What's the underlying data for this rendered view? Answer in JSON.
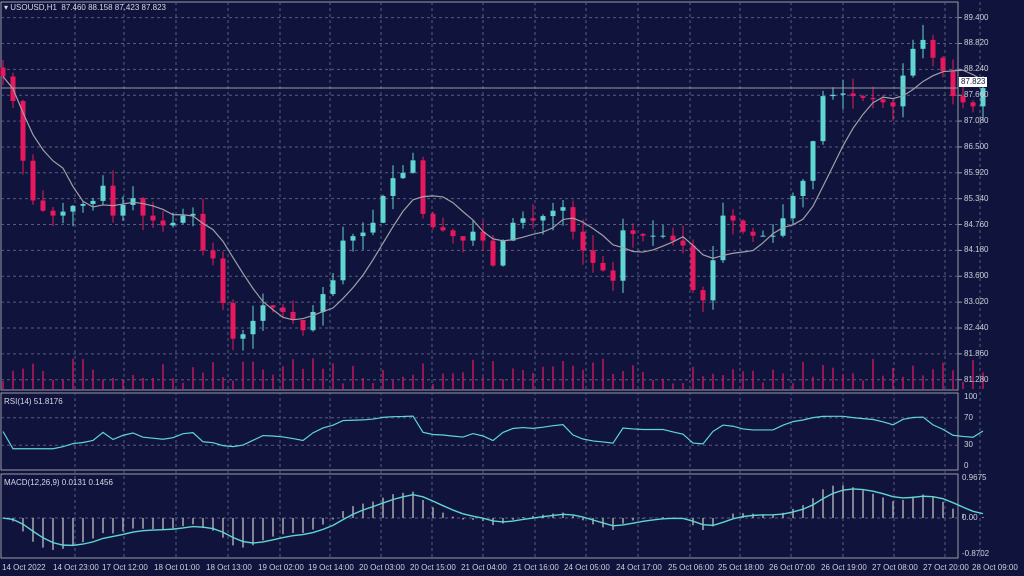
{
  "symbol_legend": {
    "symbol": "USOUSD,H1",
    "open": "87.460",
    "high": "88.158",
    "low": "87.423",
    "close": "87.823"
  },
  "current_price_tag": "87.823",
  "rsi_legend": "RSI(14) 51.8176",
  "macd_legend": "MACD(12,26,9) 0.0131 0.1456",
  "colors": {
    "background": "#10133b",
    "grid": "#565c80",
    "bull": "#5fd6d2",
    "bear": "#e8185f",
    "ma": "#a0a0a8",
    "volume": "#c0185a",
    "rsi": "#5fd6d2",
    "macd_hist": "#a8a8b0",
    "macd_signal": "#5fd6d2"
  },
  "chart_data": [
    {
      "type": "candlestick",
      "title": "USOUSD,H1",
      "price_ticks": [
        "89.400",
        "88.820",
        "88.240",
        "87.660",
        "87.080",
        "86.500",
        "85.920",
        "85.340",
        "84.760",
        "84.180",
        "83.600",
        "83.020",
        "82.440",
        "81.860",
        "81.280"
      ],
      "ylim": [
        81.05,
        89.75
      ],
      "time_ticks": [
        "14 Oct 2022",
        "14 Oct 23:00",
        "17 Oct 12:00",
        "18 Oct 01:00",
        "18 Oct 13:00",
        "19 Oct 02:00",
        "19 Oct 14:00",
        "20 Oct 03:00",
        "20 Oct 15:00",
        "21 Oct 04:00",
        "21 Oct 16:00",
        "24 Oct 05:00",
        "24 Oct 17:00",
        "25 Oct 06:00",
        "25 Oct 18:00",
        "26 Oct 07:00",
        "26 Oct 19:00",
        "27 Oct 08:00",
        "27 Oct 20:00",
        "28 Oct 09:00"
      ],
      "approx_closes": [
        88.08,
        87.53,
        86.19,
        85.3,
        85.07,
        84.96,
        85.05,
        85.18,
        85.22,
        85.29,
        85.63,
        84.96,
        85.2,
        85.35,
        84.96,
        84.85,
        84.74,
        84.8,
        84.96,
        85.0,
        84.18,
        84.0,
        83.0,
        82.2,
        82.3,
        82.6,
        82.95,
        82.9,
        82.8,
        82.62,
        82.39,
        82.8,
        83.2,
        83.51,
        84.4,
        84.5,
        84.58,
        84.8,
        85.4,
        85.8,
        85.92,
        86.2,
        85.0,
        84.7,
        84.63,
        84.5,
        84.4,
        84.6,
        84.4,
        83.84,
        84.4,
        84.8,
        84.9,
        84.85,
        84.95,
        85.07,
        85.15,
        84.6,
        84.18,
        83.9,
        83.73,
        83.5,
        84.63,
        84.55,
        84.51,
        84.51,
        84.51,
        84.4,
        84.29,
        83.29,
        83.06,
        83.96,
        84.96,
        84.85,
        84.6,
        84.51,
        84.51,
        84.51,
        84.9,
        85.4,
        85.74,
        86.63,
        87.64,
        87.67,
        87.7,
        87.64,
        87.6,
        87.57,
        87.5,
        87.41,
        88.1,
        88.7,
        88.9,
        88.5,
        88.2,
        87.64,
        87.5,
        87.41,
        87.82
      ]
    },
    {
      "type": "line",
      "title": "RSI(14)",
      "value": 51.8176,
      "ticks": [
        "100",
        "70",
        "30",
        "0"
      ],
      "ylim": [
        0,
        100
      ]
    },
    {
      "type": "bar",
      "title": "MACD(12,26,9)",
      "macd": 0.0131,
      "signal": 0.1456,
      "ticks": [
        "0.9675",
        "0.00",
        "-0.8702"
      ],
      "ylim": [
        -0.8702,
        0.9675
      ]
    }
  ]
}
